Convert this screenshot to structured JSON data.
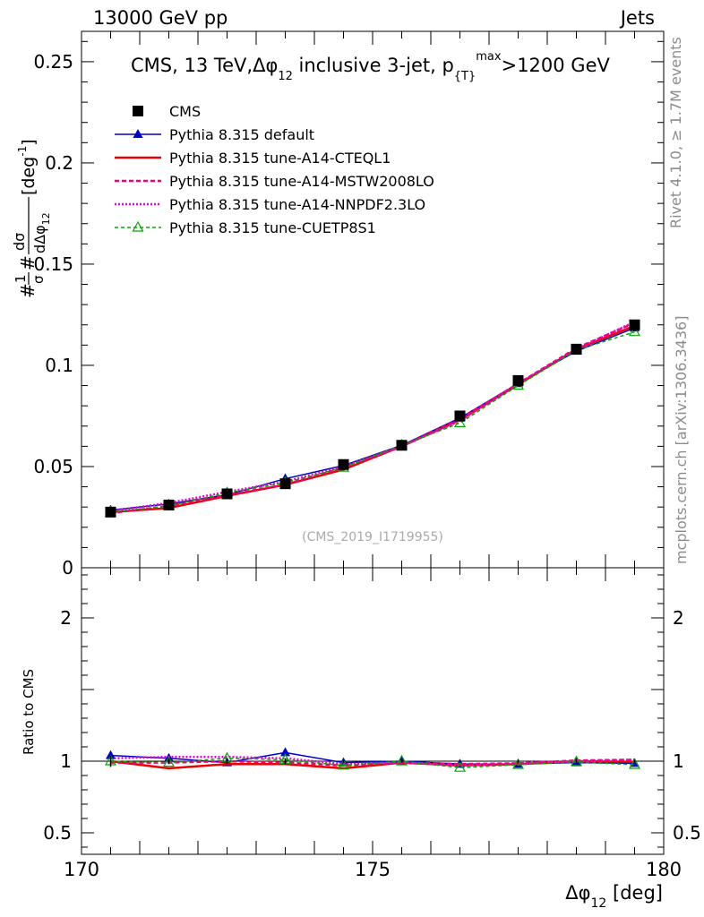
{
  "header": {
    "left": "13000 GeV pp",
    "right": "Jets"
  },
  "side": {
    "rivet": "Rivet 4.1.0, ≥ 1.7M events",
    "mcplots": "mcplots.cern.ch [arXiv:1306.3436]"
  },
  "chart_data": {
    "type": "line",
    "title": "CMS, 13 TeV, Δφ12 inclusive 3-jet, p{T}max>1200 GeV",
    "title_parts": {
      "a": "CMS, 13 TeV,",
      "b": "Δφ",
      "b_sub": "12",
      "c": " inclusive 3-jet, p",
      "c_sub": "{T}",
      "c_sup": "max",
      "d": ">1200 GeV"
    },
    "analysis_id": "(CMS_2019_I1719955)",
    "xlabel": {
      "main": "Δφ",
      "sub": "12",
      "unit": " [deg]"
    },
    "ylabel": {
      "pre": "#",
      "frac1_num": "1",
      "frac1_den": "σ",
      "mid": "#",
      "frac2_num": "dσ",
      "frac2_den": "dΔφ",
      "frac2_den_sub": "12",
      "unit": " [deg",
      "unit_sup": "-1",
      "unit_end": "]"
    },
    "ratio_ylabel": "Ratio to CMS",
    "xlim": [
      170,
      180
    ],
    "ylim": [
      0,
      0.265
    ],
    "ratio_ylim": [
      0.35,
      2.35
    ],
    "x_ticks": [
      {
        "v": 170,
        "label": "170"
      },
      {
        "v": 175,
        "label": "175"
      },
      {
        "v": 180,
        "label": "180"
      }
    ],
    "y_ticks": [
      {
        "v": 0,
        "label": "0"
      },
      {
        "v": 0.05,
        "label": "0.05"
      },
      {
        "v": 0.1,
        "label": "0.1"
      },
      {
        "v": 0.15,
        "label": "0.15"
      },
      {
        "v": 0.2,
        "label": "0.2"
      },
      {
        "v": 0.25,
        "label": "0.25"
      }
    ],
    "ratio_ticks": [
      {
        "v": 0.5,
        "label": "0.5"
      },
      {
        "v": 1,
        "label": "1"
      },
      {
        "v": 2,
        "label": "2"
      }
    ],
    "x": [
      170.5,
      171.5,
      172.5,
      173.5,
      174.5,
      175.5,
      176.5,
      177.5,
      178.5,
      179.5
    ],
    "series": [
      {
        "name": "CMS",
        "style": "data",
        "color": "#000000",
        "values": [
          0.0275,
          0.031,
          0.0365,
          0.0415,
          0.051,
          0.0605,
          0.075,
          0.0925,
          0.108,
          0.12
        ]
      },
      {
        "name": "Pythia 8.315 default",
        "style": "solid-triangle",
        "color": "#0000cc",
        "values": [
          0.0285,
          0.0315,
          0.036,
          0.044,
          0.0505,
          0.0605,
          0.074,
          0.091,
          0.107,
          0.1185
        ]
      },
      {
        "name": "Pythia 8.315 tune-A14-CTEQL1",
        "style": "solid-thick",
        "color": "#ee0000",
        "values": [
          0.0275,
          0.0295,
          0.0355,
          0.041,
          0.0485,
          0.06,
          0.073,
          0.0905,
          0.108,
          0.1195
        ]
      },
      {
        "name": "Pythia 8.315 tune-A14-MSTW2008LO",
        "style": "dashed",
        "color": "#ee0077",
        "values": [
          0.027,
          0.0305,
          0.036,
          0.041,
          0.0495,
          0.06,
          0.0735,
          0.091,
          0.1085,
          0.121
        ]
      },
      {
        "name": "Pythia 8.315 tune-A14-NNPDF2.3LO",
        "style": "dotted",
        "color": "#ee00cc",
        "values": [
          0.028,
          0.032,
          0.0375,
          0.0425,
          0.05,
          0.06,
          0.0725,
          0.091,
          0.108,
          0.1215
        ]
      },
      {
        "name": "Pythia 8.315 tune-CUETP8S1",
        "style": "dashed-open-triangle",
        "color": "#00aa00",
        "values": [
          0.0275,
          0.0305,
          0.037,
          0.042,
          0.0495,
          0.0605,
          0.0715,
          0.09,
          0.1075,
          0.1165
        ]
      }
    ],
    "ratios": [
      [
        1.0,
        1.0,
        1.0,
        1.0,
        1.0,
        1.0,
        1.0,
        1.0,
        1.0,
        1.0
      ],
      [
        1.04,
        1.02,
        0.99,
        1.06,
        0.99,
        1.0,
        0.98,
        0.98,
        0.99,
        0.985
      ],
      [
        1.0,
        0.95,
        0.98,
        0.98,
        0.95,
        0.99,
        0.97,
        0.98,
        1.0,
        0.995
      ],
      [
        0.99,
        0.99,
        1.0,
        0.99,
        0.97,
        0.99,
        0.98,
        0.985,
        1.005,
        1.01
      ],
      [
        1.02,
        1.03,
        1.03,
        1.02,
        0.98,
        0.99,
        0.97,
        0.985,
        1.0,
        1.01
      ],
      [
        1.0,
        0.99,
        1.02,
        1.01,
        0.97,
        1.0,
        0.955,
        0.975,
        0.995,
        0.975
      ]
    ],
    "ratio_errors": [
      0.04,
      0.02,
      0.02,
      0.02,
      0.01,
      0.01,
      0.01,
      0.01,
      0.01,
      0.01
    ]
  }
}
